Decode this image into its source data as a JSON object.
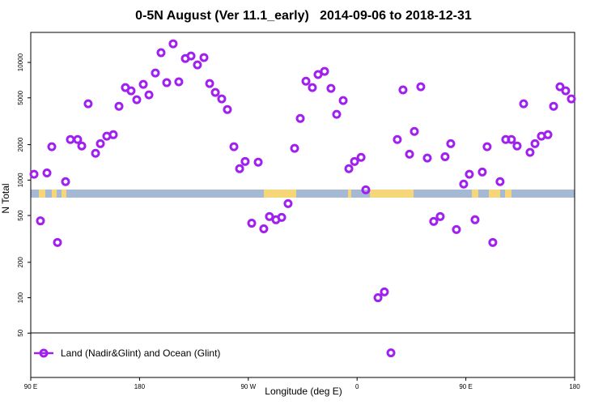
{
  "chart_data": {
    "type": "scatter",
    "title": "0-5N August (Ver 11.1_early)   2014-09-06 to 2018-12-31",
    "x_label": "Longitude (deg E)",
    "y_label": "N Total",
    "log_y": true,
    "xlim": [
      90,
      540
    ],
    "ylim": [
      21,
      18000
    ],
    "xticks": [
      {
        "value": 90,
        "label": "90 E"
      },
      {
        "value": 180,
        "label": "180"
      },
      {
        "value": 270,
        "label": "90 W"
      },
      {
        "value": 360,
        "label": "0"
      },
      {
        "value": 450,
        "label": "90 E"
      },
      {
        "value": 540,
        "label": "180"
      }
    ],
    "yticks": [
      50,
      100,
      200,
      500,
      1000,
      2000,
      5000,
      10000
    ],
    "series": [
      {
        "name": "Land (Nadir&Glint) and Ocean (Glint)",
        "color": "#a020f0",
        "x": [
          92.7,
          98.0,
          103.4,
          107.4,
          112.1,
          118.8,
          122.8,
          128.8,
          132.2,
          137.5,
          143.6,
          147.6,
          152.9,
          158.3,
          163.0,
          168.3,
          173.0,
          177.7,
          183.1,
          187.8,
          193.1,
          197.8,
          202.5,
          207.8,
          212.5,
          217.9,
          222.6,
          227.9,
          233.3,
          238.0,
          242.7,
          248.0,
          252.7,
          258.1,
          262.8,
          267.4,
          272.8,
          278.2,
          282.8,
          287.5,
          292.9,
          297.6,
          302.9,
          308.3,
          313.0,
          317.7,
          323.0,
          327.7,
          333.1,
          338.4,
          343.1,
          348.5,
          353.2,
          357.9,
          363.3,
          367.2,
          377.3,
          382.6,
          388.0,
          393.3,
          398.0,
          403.4,
          407.4,
          412.7,
          418.1,
          423.4,
          428.8,
          432.8,
          437.5,
          442.2,
          448.2,
          452.9,
          457.6,
          463.6,
          467.6,
          472.3,
          478.3,
          483.0,
          487.7,
          492.4,
          497.8,
          503.1,
          507.2,
          512.5,
          517.9,
          522.6,
          527.9,
          532.6,
          537.3
        ],
        "values": [
          1120,
          450,
          1150,
          1920,
          295,
          970,
          2210,
          2210,
          1950,
          4450,
          1690,
          2040,
          2360,
          2430,
          4240,
          6110,
          5740,
          4820,
          6510,
          5300,
          8130,
          12100,
          6730,
          14400,
          6840,
          10800,
          11350,
          9530,
          11000,
          6620,
          5560,
          4900,
          3980,
          1920,
          1250,
          1440,
          430,
          1420,
          385,
          490,
          460,
          482,
          631,
          1860,
          3340,
          6930,
          6110,
          7890,
          8400,
          6020,
          3620,
          4740,
          1250,
          1440,
          1560,
          826,
          100,
          112,
          34,
          2210,
          5840,
          1660,
          2590,
          6210,
          1540,
          445,
          490,
          1580,
          2040,
          380,
          925,
          1120,
          460,
          1170,
          1920,
          295,
          970,
          2210,
          2210,
          1950,
          4450,
          1720,
          2040,
          2360,
          2430,
          4240,
          6210,
          5740,
          4900
        ]
      }
    ]
  }
}
